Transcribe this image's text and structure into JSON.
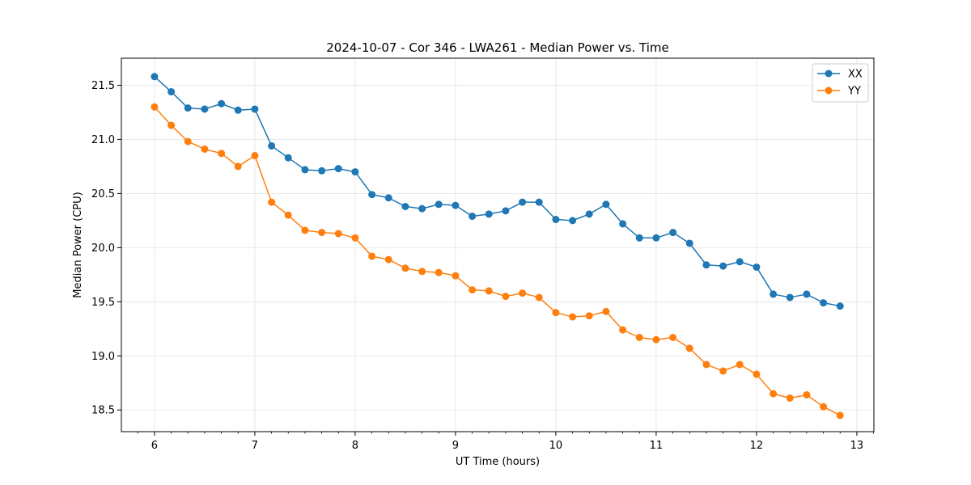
{
  "chart_data": {
    "type": "line",
    "title": "2024-10-07 - Cor 346 - LWA261 - Median Power vs. Time",
    "xlabel": "UT Time (hours)",
    "ylabel": "Median Power (CPU)",
    "xlim": [
      5.67,
      13.17
    ],
    "ylim": [
      18.3,
      21.75
    ],
    "xticks": [
      6,
      7,
      8,
      9,
      10,
      11,
      12,
      13
    ],
    "xtick_labels": [
      "6",
      "7",
      "8",
      "9",
      "10",
      "11",
      "12",
      "13"
    ],
    "yticks": [
      18.5,
      19.0,
      19.5,
      20.0,
      20.5,
      21.0,
      21.5
    ],
    "ytick_labels": [
      "18.5",
      "19.0",
      "19.5",
      "20.0",
      "20.5",
      "21.0",
      "21.5"
    ],
    "grid": true,
    "legend_position": "top-right",
    "x": [
      6.0,
      6.167,
      6.333,
      6.5,
      6.667,
      6.833,
      7.0,
      7.167,
      7.333,
      7.5,
      7.667,
      7.833,
      8.0,
      8.167,
      8.333,
      8.5,
      8.667,
      8.833,
      9.0,
      9.167,
      9.333,
      9.5,
      9.667,
      9.833,
      10.0,
      10.167,
      10.333,
      10.5,
      10.667,
      10.833,
      11.0,
      11.167,
      11.333,
      11.5,
      11.667,
      11.833,
      12.0,
      12.167,
      12.333,
      12.5,
      12.667,
      12.833
    ],
    "series": [
      {
        "name": "XX",
        "color": "#1f77b4",
        "values": [
          21.58,
          21.44,
          21.29,
          21.28,
          21.33,
          21.27,
          21.28,
          20.94,
          20.83,
          20.72,
          20.71,
          20.73,
          20.7,
          20.49,
          20.46,
          20.38,
          20.36,
          20.4,
          20.39,
          20.29,
          20.31,
          20.34,
          20.42,
          20.42,
          20.26,
          20.25,
          20.31,
          20.4,
          20.22,
          20.09,
          20.09,
          20.14,
          20.04,
          19.84,
          19.83,
          19.87,
          19.82,
          19.57,
          19.54,
          19.57,
          19.49,
          19.46
        ]
      },
      {
        "name": "YY",
        "color": "#ff7f0e",
        "values": [
          21.3,
          21.13,
          20.98,
          20.91,
          20.87,
          20.75,
          20.85,
          20.42,
          20.3,
          20.16,
          20.14,
          20.13,
          20.09,
          19.92,
          19.89,
          19.81,
          19.78,
          19.77,
          19.74,
          19.61,
          19.6,
          19.55,
          19.58,
          19.54,
          19.4,
          19.36,
          19.37,
          19.41,
          19.24,
          19.17,
          19.15,
          19.17,
          19.07,
          18.92,
          18.86,
          18.92,
          18.83,
          18.65,
          18.61,
          18.64,
          18.53,
          18.45
        ]
      }
    ]
  }
}
